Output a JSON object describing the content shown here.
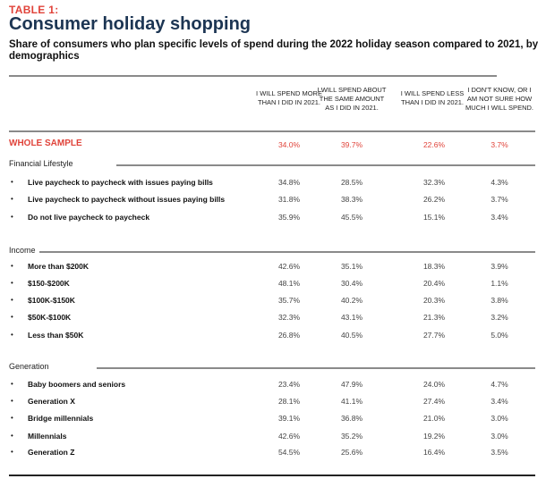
{
  "kicker": "TABLE 1:",
  "title": "Consumer holiday shopping",
  "subtitle": "Share of consumers who plan specific levels of spend during the 2022 holiday season compared to 2021, by demographics",
  "columns": [
    "I WILL SPEND MORE THAN I DID IN 2021.",
    "I WILL SPEND ABOUT THE SAME AMOUNT AS I DID IN 2021.",
    "I WILL SPEND LESS THAN I DID IN 2021.",
    "I DON'T KNOW, OR I AM NOT SURE HOW MUCH I WILL SPEND."
  ],
  "whole_sample": {
    "label": "WHOLE SAMPLE",
    "values": [
      "34.0%",
      "39.7%",
      "22.6%",
      "3.7%"
    ]
  },
  "groups": [
    {
      "label": "Financial Lifestyle",
      "rows": [
        {
          "label": "Live paycheck to paycheck with issues paying bills",
          "values": [
            "34.8%",
            "28.5%",
            "32.3%",
            "4.3%"
          ]
        },
        {
          "label": "Live paycheck to paycheck without issues paying bills",
          "values": [
            "31.8%",
            "38.3%",
            "26.2%",
            "3.7%"
          ]
        },
        {
          "label": "Do not live paycheck to paycheck",
          "values": [
            "35.9%",
            "45.5%",
            "15.1%",
            "3.4%"
          ]
        }
      ]
    },
    {
      "label": "Income",
      "rows": [
        {
          "label": "More than $200K",
          "values": [
            "42.6%",
            "35.1%",
            "18.3%",
            "3.9%"
          ]
        },
        {
          "label": "$150-$200K",
          "values": [
            "48.1%",
            "30.4%",
            "20.4%",
            "1.1%"
          ]
        },
        {
          "label": "$100K-$150K",
          "values": [
            "35.7%",
            "40.2%",
            "20.3%",
            "3.8%"
          ]
        },
        {
          "label": "$50K-$100K",
          "values": [
            "32.3%",
            "43.1%",
            "21.3%",
            "3.2%"
          ]
        },
        {
          "label": "Less than $50K",
          "values": [
            "26.8%",
            "40.5%",
            "27.7%",
            "5.0%"
          ]
        }
      ]
    },
    {
      "label": "Generation",
      "rows": [
        {
          "label": "Baby boomers and seniors",
          "values": [
            "23.4%",
            "47.9%",
            "24.0%",
            "4.7%"
          ]
        },
        {
          "label": "Generation X",
          "values": [
            "28.1%",
            "41.1%",
            "27.4%",
            "3.4%"
          ]
        },
        {
          "label": "Bridge millennials",
          "values": [
            "39.1%",
            "36.8%",
            "21.0%",
            "3.0%"
          ]
        },
        {
          "label": "Millennials",
          "values": [
            "42.6%",
            "35.2%",
            "19.2%",
            "3.0%"
          ]
        },
        {
          "label": "Generation Z",
          "values": [
            "54.5%",
            "25.6%",
            "16.4%",
            "3.5%"
          ]
        }
      ]
    }
  ],
  "bullet": "•"
}
